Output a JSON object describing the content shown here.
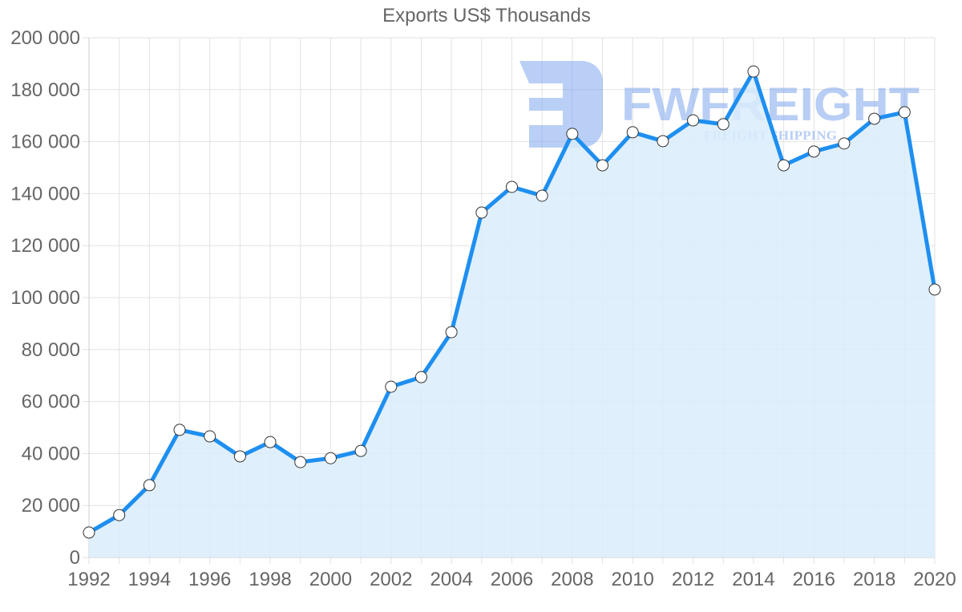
{
  "chart_data": {
    "type": "area",
    "title": "Exports US$ Thousands",
    "xlabel": "",
    "ylabel": "",
    "x": [
      1992,
      1993,
      1994,
      1995,
      1996,
      1997,
      1998,
      1999,
      2000,
      2001,
      2002,
      2003,
      2004,
      2005,
      2006,
      2007,
      2008,
      2009,
      2010,
      2011,
      2012,
      2013,
      2014,
      2015,
      2016,
      2017,
      2018,
      2019,
      2020
    ],
    "series": [
      {
        "name": "Exports US$ Thousands",
        "values": [
          9600,
          16300,
          27800,
          49100,
          46600,
          38900,
          44400,
          36700,
          38200,
          41000,
          65700,
          69400,
          86700,
          132700,
          142600,
          139200,
          163000,
          150900,
          163600,
          160200,
          168200,
          166700,
          187000,
          150900,
          156200,
          159300,
          168800,
          171300,
          103100
        ],
        "line_color": "#1e8ff0",
        "fill_color": "#d9ecfc"
      }
    ],
    "ylim": [
      0,
      200000
    ],
    "yticks": [
      "0",
      "20 000",
      "40 000",
      "60 000",
      "80 000",
      "100 000",
      "120 000",
      "140 000",
      "160 000",
      "180 000",
      "200 000"
    ],
    "xticks": [
      "1992",
      "1994",
      "1996",
      "1998",
      "2000",
      "2002",
      "2004",
      "2006",
      "2008",
      "2010",
      "2012",
      "2014",
      "2016",
      "2018",
      "2020"
    ],
    "grid": true,
    "legend": "none"
  },
  "watermark": {
    "brand": "FWFREIGHT",
    "tagline": "FREIGHT SHIPPING",
    "color": "#7fa7ee"
  }
}
